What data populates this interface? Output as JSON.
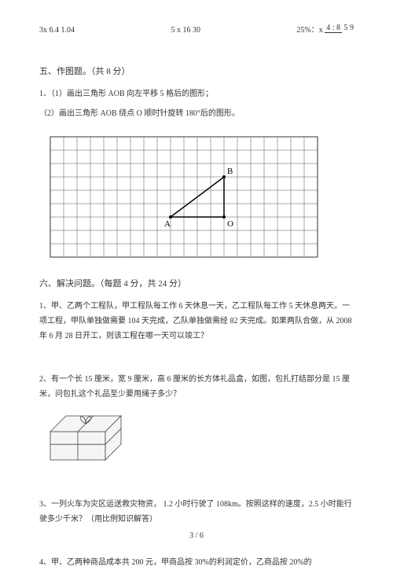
{
  "top_equations": {
    "eq1": "3x 6.4 1.04",
    "eq2": "5 x 16  30",
    "eq3_prefix": "25%：x",
    "eq3_frac_top": "4 : 8",
    "eq3_frac_bot": "5 9"
  },
  "section5": {
    "title": "五、作图题。（共 8 分）",
    "line1": "1、（1）画出三角形 AOB 向左平移 5 格后的图形；",
    "line2": "（2）画出三角形 AOB 绕点 O 顺时针旋转 180°后的图形。"
  },
  "grid": {
    "cols": 20,
    "rows": 9,
    "cell": 17,
    "stroke": "#555555",
    "outer_stroke_width": 1.2,
    "inner_stroke_width": 0.5,
    "labels": {
      "A": {
        "text": "A",
        "col": 9,
        "row": 6
      },
      "O": {
        "text": "O",
        "col": 13,
        "row": 6
      },
      "B": {
        "text": "B",
        "col": 13,
        "row": 3
      }
    },
    "triangle": {
      "A": {
        "col": 9,
        "row": 6
      },
      "O": {
        "col": 13,
        "row": 6
      },
      "B": {
        "col": 13,
        "row": 3
      }
    }
  },
  "section6": {
    "title": "六、解决问题。（每题 4 分，共 24 分）",
    "q1": "1、甲、乙两个工程队，甲工程队每工作  6 天休息一天，乙工程队每工作  5 天休息两天。一项工程，甲队单独做需要  104 天完成，乙队单独做需经  82 天完成。如果两队合做，从  2008 年 6 月 28 日开工，则该工程在哪一天可以竣工？",
    "q2": "2、有一个长 15 厘米，宽 9 厘米，高 6 厘米的长方体礼品盒，如图，包扎打结部分是 15 厘米，问包扎这个礼品至少要用绳子多少？",
    "q3": "3、一列火车为灾区运送救灾物资， 1.2 小时行驶了 108km。按照这样的速度，2.5 小时能行驶多少千米？（用比例知识解答）",
    "q4": "4、甲、乙两种商品成本共  200 元，甲商品按 30%的利润定价，乙商品按  20%的"
  },
  "gift_box": {
    "width": 70,
    "height": 36,
    "depth": 20,
    "stroke": "#444444",
    "stroke_width": 0.8,
    "fill": "#f5f5f5"
  },
  "footer": {
    "page": "3 / 6"
  }
}
